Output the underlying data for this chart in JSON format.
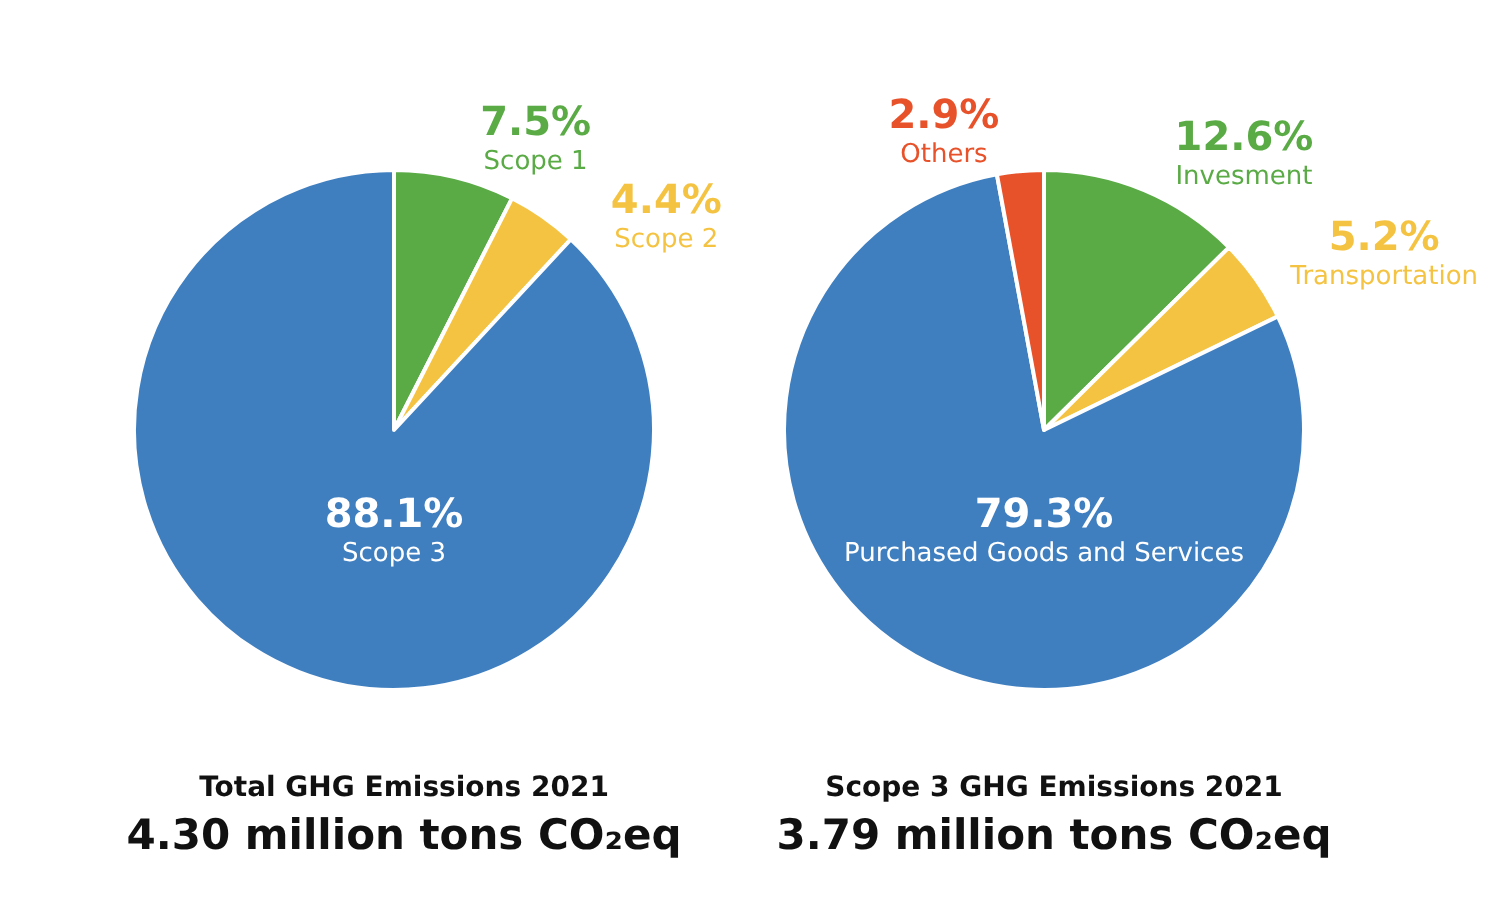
{
  "chart_data": [
    {
      "type": "pie",
      "title": "Total GHG Emissions 2021",
      "subtitle": "4.30 million tons CO₂eq",
      "categories": [
        "Scope 1",
        "Scope 2",
        "Scope 3"
      ],
      "values": [
        7.5,
        4.4,
        88.1
      ],
      "value_labels": [
        "7.5%",
        "4.4%",
        "88.1%"
      ],
      "colors": [
        "#5aab46",
        "#f5c342",
        "#3f7fc0"
      ],
      "legend": false
    },
    {
      "type": "pie",
      "title": "Scope 3 GHG Emissions 2021",
      "subtitle": "3.79 million tons CO₂eq",
      "categories": [
        "Invesment",
        "Transportation",
        "Purchased Goods and Services",
        "Others"
      ],
      "values": [
        12.6,
        5.2,
        79.3,
        2.9
      ],
      "value_labels": [
        "12.6%",
        "5.2%",
        "79.3%",
        "2.9%"
      ],
      "colors": [
        "#5aab46",
        "#f5c342",
        "#3f7fc0",
        "#e8522a"
      ],
      "legend": false
    }
  ]
}
